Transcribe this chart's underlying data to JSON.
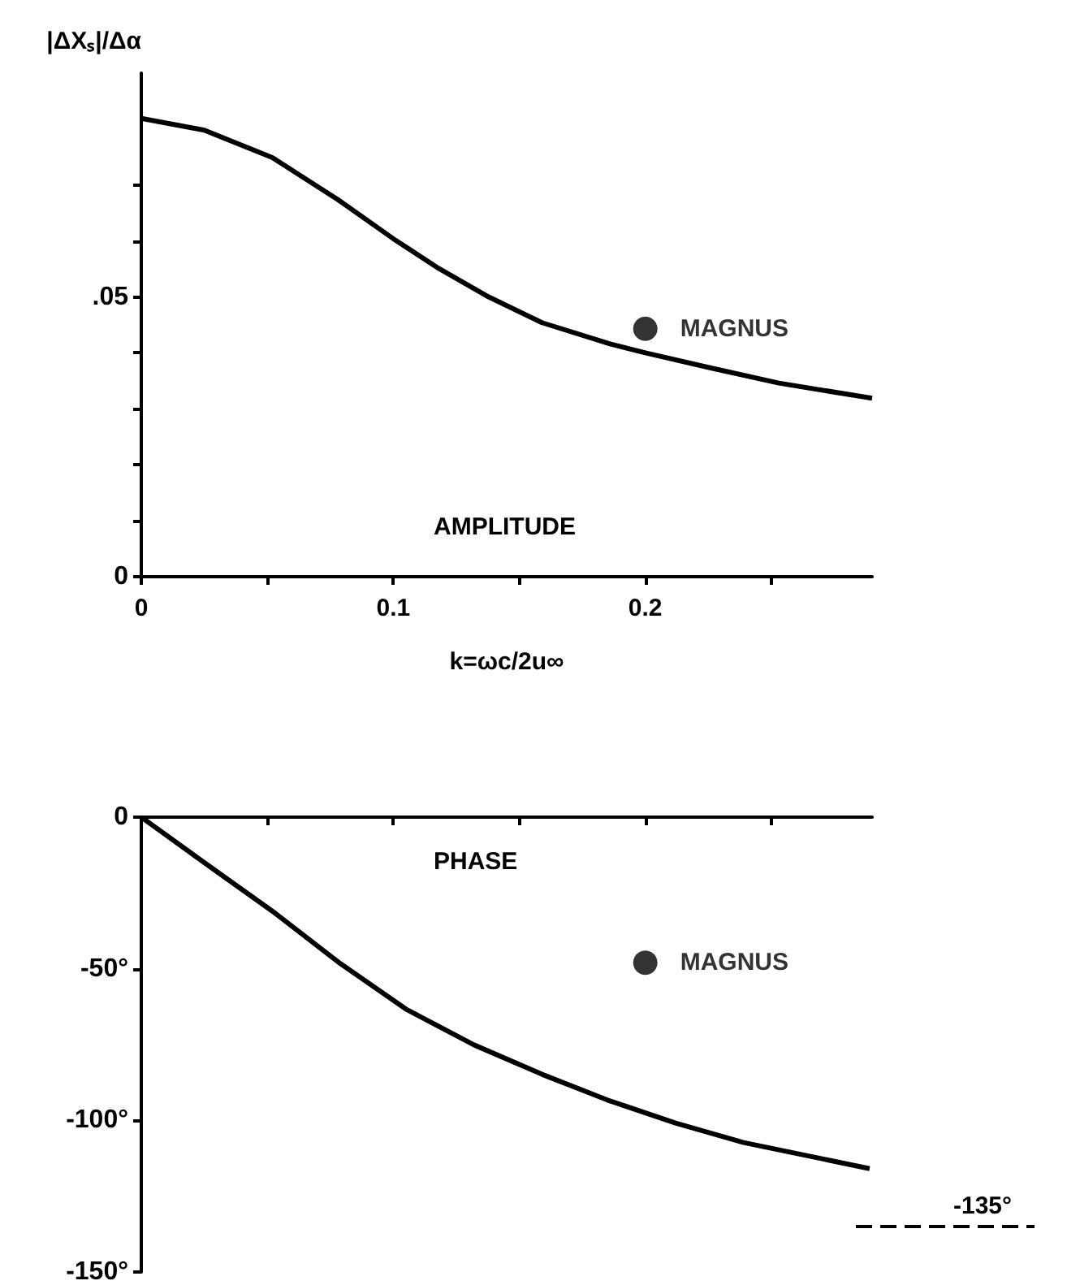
{
  "chart_data": [
    {
      "type": "line",
      "xlabel": "k=ωc/2u∞",
      "ylabel": "|ΔXₛ|/Δα",
      "annotations": [
        "AMPLITUDE"
      ],
      "xlim": [
        0,
        0.29
      ],
      "xticks": [
        0,
        {
          "value": 0.05,
          "label": null
        },
        {
          "value": 0.1,
          "label": "0.1"
        },
        {
          "value": 0.15,
          "label": null
        },
        {
          "value": 0.2,
          "label": "0.2"
        },
        {
          "value": 0.25,
          "label": null
        }
      ],
      "ylim": [
        0,
        0.09
      ],
      "yticks": [
        0,
        {
          "value": 0.01,
          "label": null
        },
        {
          "value": 0.02,
          "label": null
        },
        {
          "value": 0.03,
          "label": null
        },
        {
          "value": 0.04,
          "label": null
        },
        {
          "value": 0.05,
          "label": ".05"
        },
        {
          "value": 0.06,
          "label": null
        },
        {
          "value": 0.07,
          "label": null
        }
      ],
      "grid": false,
      "legend": false,
      "series": [
        {
          "color": "#000000",
          "marker": "none",
          "x": [
            0,
            0.025,
            0.052,
            0.078,
            0.1,
            0.118,
            0.137,
            0.159,
            0.186,
            0.2,
            0.226,
            0.253,
            0.29
          ],
          "values": [
            0.0819,
            0.0798,
            0.0749,
            0.0674,
            0.0604,
            0.0551,
            0.0502,
            0.0454,
            0.0416,
            0.04,
            0.0373,
            0.0346,
            0.0319
          ]
        },
        {
          "type": "scatter",
          "name": "MAGNUS",
          "color": "#000000",
          "marker": "circle",
          "x": [
            0.2
          ],
          "values": [
            0.0443
          ]
        }
      ]
    },
    {
      "type": "line",
      "annotations": [
        "PHASE"
      ],
      "xlim": [
        0,
        0.29
      ],
      "xticks": [
        {
          "value": 0,
          "label": null
        },
        {
          "value": 0.05,
          "label": null
        },
        {
          "value": 0.1,
          "label": null
        },
        {
          "value": 0.15,
          "label": null
        },
        {
          "value": 0.2,
          "label": null
        },
        {
          "value": 0.25,
          "label": null
        }
      ],
      "ylim": [
        -150,
        0
      ],
      "yticks": [
        0,
        {
          "value": -50,
          "label": "-50°"
        },
        {
          "value": -100,
          "label": "-100°"
        },
        {
          "value": -150,
          "label": "-150°"
        }
      ],
      "tick_labels": "y",
      "grid": false,
      "legend": false,
      "ref_lines": [
        {
          "axis": "y",
          "value": -135,
          "label": "-135°",
          "line_style": "dashed",
          "color": "#000000"
        }
      ],
      "series": [
        {
          "color": "#000000",
          "marker": "none",
          "x": [
            0,
            0.025,
            0.052,
            0.079,
            0.105,
            0.132,
            0.159,
            0.185,
            0.212,
            0.239,
            0.289
          ],
          "values": [
            0,
            -15,
            -31,
            -48.3,
            -63.3,
            -75.1,
            -84.8,
            -93.3,
            -100.9,
            -107.3,
            -115.9
          ]
        },
        {
          "type": "scatter",
          "name": "MAGNUS",
          "color": "#000000",
          "marker": "circle",
          "x": [
            0.2
          ],
          "values": [
            -48
          ]
        }
      ]
    }
  ]
}
